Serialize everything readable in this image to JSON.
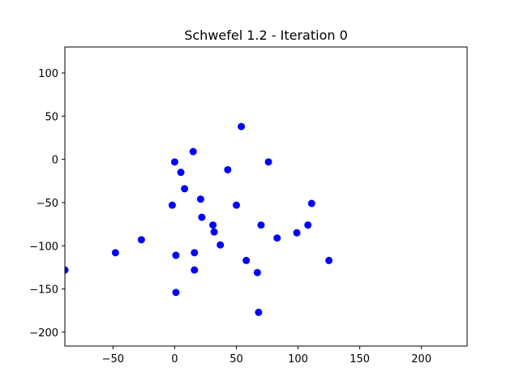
{
  "chart_data": {
    "type": "scatter",
    "title": "Schwefel 1.2 - Iteration 0",
    "xlabel": "",
    "ylabel": "",
    "xlim": [
      -89,
      237
    ],
    "ylim": [
      -216,
      130
    ],
    "xticks": [
      -50,
      0,
      50,
      100,
      150,
      200
    ],
    "yticks": [
      -200,
      -150,
      -100,
      -50,
      0,
      50,
      100
    ],
    "xtick_labels": [
      "−50",
      "0",
      "50",
      "100",
      "150",
      "200"
    ],
    "ytick_labels": [
      "−200",
      "−150",
      "−100",
      "−50",
      "0",
      "50",
      "100"
    ],
    "grid": false,
    "legend": "none",
    "marker_color": "#0000ff",
    "series": [
      {
        "points": [
          [
            54,
            38
          ],
          [
            15,
            9
          ],
          [
            0,
            -3
          ],
          [
            5,
            -15
          ],
          [
            43,
            -12
          ],
          [
            76,
            -3
          ],
          [
            8,
            -34
          ],
          [
            -2,
            -53
          ],
          [
            21,
            -46
          ],
          [
            50,
            -53
          ],
          [
            111,
            -51
          ],
          [
            22,
            -67
          ],
          [
            70,
            -76
          ],
          [
            31,
            -76
          ],
          [
            108,
            -76
          ],
          [
            32,
            -84
          ],
          [
            99,
            -85
          ],
          [
            83,
            -91
          ],
          [
            37,
            -99
          ],
          [
            -27,
            -93
          ],
          [
            -48,
            -108
          ],
          [
            16,
            -108
          ],
          [
            1,
            -111
          ],
          [
            58,
            -117
          ],
          [
            125,
            -117
          ],
          [
            16,
            -128
          ],
          [
            67,
            -131
          ],
          [
            -89,
            -128
          ],
          [
            1,
            -154
          ],
          [
            68,
            -177
          ]
        ]
      }
    ]
  }
}
